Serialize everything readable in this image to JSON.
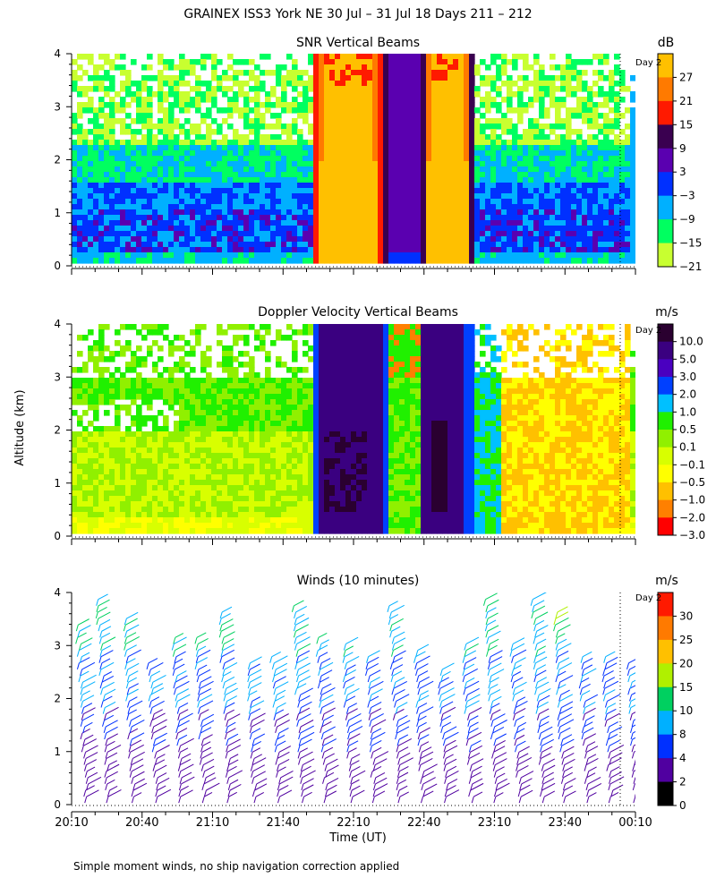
{
  "page": {
    "title": "GRAINEX ISS3 York NE  30 Jul – 31 Jul 18 Days 211 – 212",
    "ylabel": "Altitude (km)",
    "xlabel": "Time (UT)",
    "footnote": "Simple moment winds, no ship navigation correction applied",
    "day_marker_label": "Day 2"
  },
  "chart_data": [
    {
      "type": "heatmap",
      "title": "SNR Vertical Beams",
      "units": "dB",
      "ylim": [
        0,
        4
      ],
      "yticks": [
        "0",
        "1",
        "2",
        "3",
        "4"
      ],
      "xticks": [
        "20:10",
        "20:40",
        "21:10",
        "21:40",
        "22:10",
        "22:40",
        "23:10",
        "23:40",
        "00:10"
      ],
      "colorbar": [
        "27",
        "21",
        "15",
        "9",
        "3",
        "−3",
        "−9",
        "−15",
        "−21"
      ],
      "colors": [
        "#ffc000",
        "#ff7a00",
        "#ff1a00",
        "#3a0050",
        "#5a00b0",
        "#0030ff",
        "#00b0ff",
        "#00ff60",
        "#c8ff30"
      ]
    },
    {
      "type": "heatmap",
      "title": "Doppler Velocity Vertical Beams",
      "units": "m/s",
      "ylim": [
        0,
        4
      ],
      "yticks": [
        "0",
        "1",
        "2",
        "3",
        "4"
      ],
      "xticks": [
        "20:10",
        "20:40",
        "21:10",
        "21:40",
        "22:10",
        "22:40",
        "23:10",
        "23:40",
        "00:10"
      ],
      "colorbar": [
        "10.0",
        "5.0",
        "3.0",
        "2.0",
        "1.0",
        "0.5",
        "0.1",
        "−0.1",
        "−0.5",
        "−1.0",
        "−2.0",
        "−3.0"
      ],
      "colors": [
        "#2a0030",
        "#3a0080",
        "#4a00c0",
        "#0040ff",
        "#00c0ff",
        "#20f000",
        "#90f000",
        "#d8ff00",
        "#ffff00",
        "#ffc000",
        "#ff8000",
        "#ff0000"
      ]
    },
    {
      "type": "scatter",
      "title": "Winds (10 minutes)",
      "units": "m/s",
      "ylim": [
        0,
        4
      ],
      "yticks": [
        "0",
        "1",
        "2",
        "3",
        "4"
      ],
      "xticks": [
        "20:10",
        "20:40",
        "21:10",
        "21:40",
        "22:10",
        "22:40",
        "23:10",
        "23:40",
        "00:10"
      ],
      "colorbar": [
        "30",
        "25",
        "20",
        "15",
        "10",
        "8",
        "4",
        "2",
        "0"
      ],
      "colors": [
        "#ff1a00",
        "#ff7a00",
        "#ffc000",
        "#b0f000",
        "#00d060",
        "#00b0ff",
        "#0030ff",
        "#5000a0",
        "#000000"
      ]
    }
  ]
}
